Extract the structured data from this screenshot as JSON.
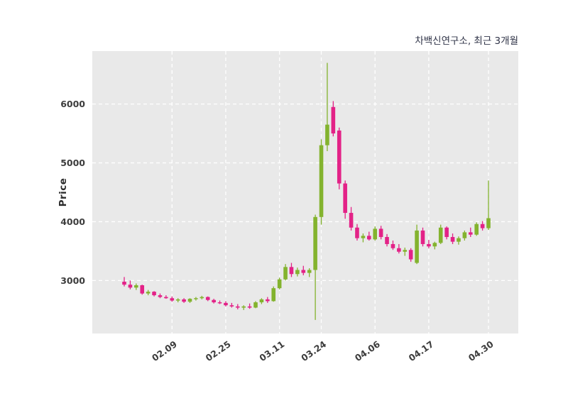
{
  "chart_data": {
    "type": "candlestick",
    "title": "차백신연구소, 최근 3개월",
    "ylabel": "Price",
    "xlabel": "",
    "ylim": [
      2100,
      6900
    ],
    "yticks": [
      3000,
      4000,
      5000,
      6000
    ],
    "xticks": [
      {
        "index": 8,
        "label": "02.09"
      },
      {
        "index": 17,
        "label": "02.25"
      },
      {
        "index": 26,
        "label": "03.11"
      },
      {
        "index": 33,
        "label": "03.24"
      },
      {
        "index": 42,
        "label": "04.06"
      },
      {
        "index": 51,
        "label": "04.17"
      },
      {
        "index": 61,
        "label": "04.30"
      }
    ],
    "grid": "white-dashed-both-axes",
    "legend": "none",
    "colors": {
      "up": "#83b32e",
      "down": "#e32287",
      "plot_bg": "#e9e9e9",
      "grid": "#ffffff",
      "figure_bg": "#ffffff",
      "tick_text": "#3d3d3d",
      "title_text": "#2f3347"
    },
    "candle_fields": [
      "open",
      "high",
      "low",
      "close"
    ],
    "candles": [
      [
        2980,
        3060,
        2900,
        2930
      ],
      [
        2930,
        3000,
        2850,
        2880
      ],
      [
        2880,
        2950,
        2840,
        2920
      ],
      [
        2920,
        2930,
        2760,
        2780
      ],
      [
        2780,
        2840,
        2750,
        2810
      ],
      [
        2810,
        2820,
        2730,
        2750
      ],
      [
        2750,
        2780,
        2700,
        2720
      ],
      [
        2720,
        2750,
        2690,
        2700
      ],
      [
        2700,
        2730,
        2640,
        2660
      ],
      [
        2660,
        2700,
        2630,
        2680
      ],
      [
        2680,
        2700,
        2620,
        2640
      ],
      [
        2640,
        2700,
        2620,
        2690
      ],
      [
        2690,
        2720,
        2660,
        2700
      ],
      [
        2700,
        2740,
        2680,
        2720
      ],
      [
        2720,
        2730,
        2650,
        2670
      ],
      [
        2670,
        2690,
        2610,
        2630
      ],
      [
        2630,
        2660,
        2600,
        2620
      ],
      [
        2620,
        2650,
        2560,
        2580
      ],
      [
        2580,
        2620,
        2540,
        2560
      ],
      [
        2560,
        2600,
        2510,
        2540
      ],
      [
        2540,
        2580,
        2500,
        2560
      ],
      [
        2560,
        2610,
        2520,
        2540
      ],
      [
        2540,
        2650,
        2530,
        2630
      ],
      [
        2630,
        2700,
        2600,
        2680
      ],
      [
        2680,
        2720,
        2620,
        2650
      ],
      [
        2650,
        2900,
        2640,
        2870
      ],
      [
        2870,
        3050,
        2850,
        3020
      ],
      [
        3020,
        3280,
        3000,
        3230
      ],
      [
        3230,
        3300,
        3060,
        3110
      ],
      [
        3110,
        3220,
        3070,
        3180
      ],
      [
        3180,
        3250,
        3090,
        3130
      ],
      [
        3130,
        3210,
        3060,
        3180
      ],
      [
        3180,
        4120,
        2330,
        4080
      ],
      [
        4080,
        5400,
        3950,
        5300
      ],
      [
        5300,
        6700,
        5200,
        5650
      ],
      [
        5950,
        6050,
        5450,
        5500
      ],
      [
        5550,
        5600,
        4550,
        4650
      ],
      [
        4650,
        4700,
        4050,
        4150
      ],
      [
        4150,
        4250,
        3850,
        3900
      ],
      [
        3900,
        3960,
        3680,
        3720
      ],
      [
        3720,
        3800,
        3650,
        3760
      ],
      [
        3760,
        3830,
        3680,
        3700
      ],
      [
        3700,
        3920,
        3680,
        3880
      ],
      [
        3880,
        3930,
        3700,
        3740
      ],
      [
        3740,
        3790,
        3580,
        3620
      ],
      [
        3620,
        3680,
        3520,
        3550
      ],
      [
        3550,
        3620,
        3460,
        3490
      ],
      [
        3490,
        3560,
        3420,
        3520
      ],
      [
        3520,
        3550,
        3320,
        3360
      ],
      [
        3300,
        3950,
        3280,
        3850
      ],
      [
        3850,
        3900,
        3580,
        3620
      ],
      [
        3620,
        3690,
        3550,
        3580
      ],
      [
        3580,
        3660,
        3530,
        3640
      ],
      [
        3640,
        3950,
        3620,
        3900
      ],
      [
        3900,
        3920,
        3700,
        3740
      ],
      [
        3740,
        3800,
        3620,
        3660
      ],
      [
        3660,
        3750,
        3610,
        3720
      ],
      [
        3720,
        3850,
        3680,
        3820
      ],
      [
        3820,
        3900,
        3740,
        3780
      ],
      [
        3780,
        3990,
        3760,
        3960
      ],
      [
        3960,
        4010,
        3850,
        3890
      ],
      [
        3890,
        4700,
        3860,
        4060
      ]
    ]
  }
}
